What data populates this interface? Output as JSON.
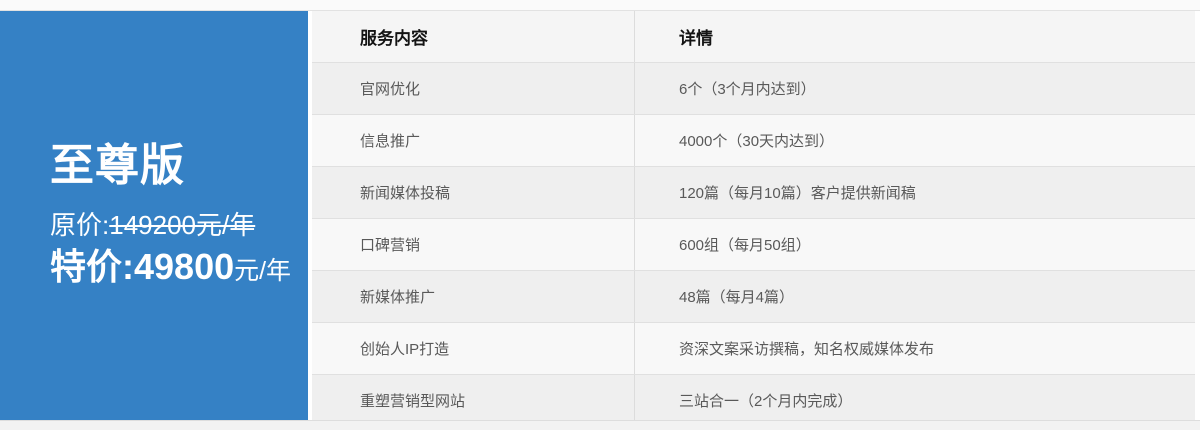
{
  "plan": {
    "name": "至尊版",
    "original_label": "原价:",
    "original_price": "149200元/年",
    "special_label": "特价:",
    "special_value": "49800",
    "special_unit": "元/年"
  },
  "table": {
    "headers": {
      "service": "服务内容",
      "detail": "详情"
    },
    "rows": [
      {
        "service": "官网优化",
        "detail": "6个（3个月内达到）"
      },
      {
        "service": "信息推广",
        "detail": "4000个（30天内达到）"
      },
      {
        "service": "新闻媒体投稿",
        "detail": "120篇（每月10篇）客户提供新闻稿"
      },
      {
        "service": "口碑营销",
        "detail": "600组（每月50组）"
      },
      {
        "service": "新媒体推广",
        "detail": "48篇（每月4篇）"
      },
      {
        "service": "创始人IP打造",
        "detail": "资深文案采访撰稿，知名权威媒体发布"
      },
      {
        "service": "重塑营销型网站",
        "detail": "三站合一（2个月内完成）"
      }
    ]
  },
  "colors": {
    "accent_blue": "#3581c5",
    "header_bg": "#f5f5f5",
    "row_dark_bg": "#efefef",
    "row_light_bg": "#f8f8f8",
    "border": "#e0e0e0"
  }
}
